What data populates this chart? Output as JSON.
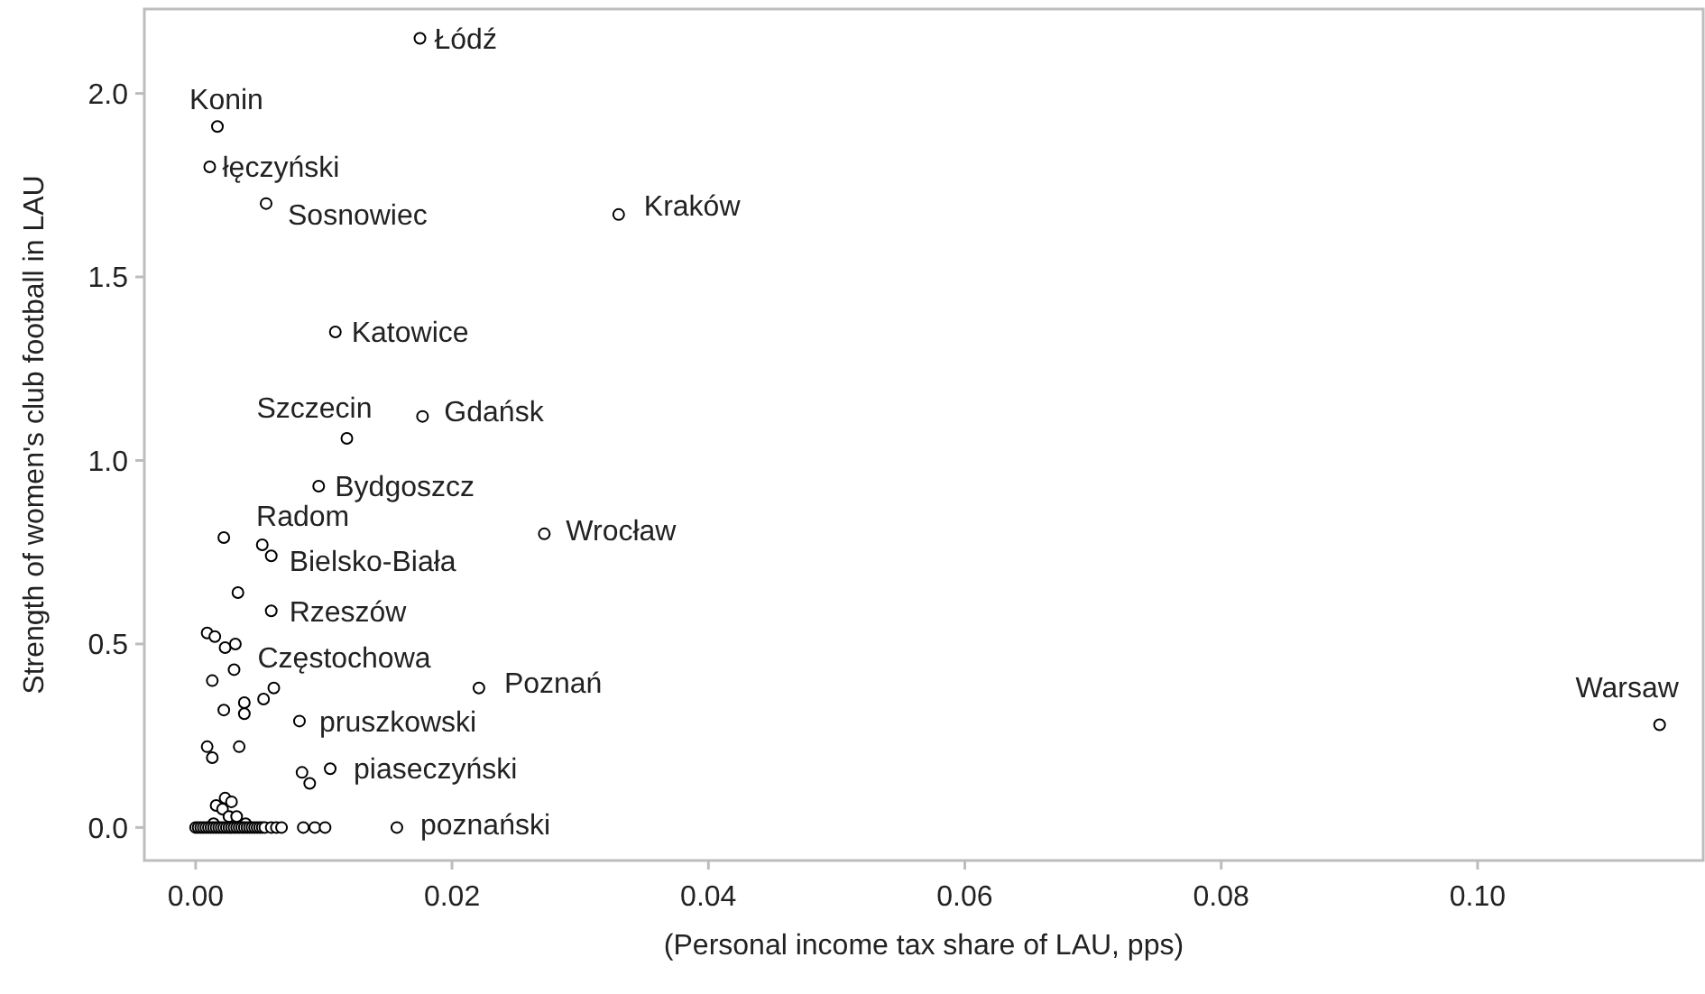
{
  "chart_data": {
    "type": "scatter",
    "xlabel": "(Personal income tax share of LAU, pps)",
    "ylabel": "Strength of women's club football in LAU",
    "xlim": [
      -0.004,
      0.1176
    ],
    "ylim": [
      -0.09,
      2.23
    ],
    "xticks": [
      {
        "value": 0,
        "label": "0.00"
      },
      {
        "value": 0.02,
        "label": "0.02"
      },
      {
        "value": 0.04,
        "label": "0.04"
      },
      {
        "value": 0.06,
        "label": "0.06"
      },
      {
        "value": 0.08,
        "label": "0.08"
      },
      {
        "value": 0.1,
        "label": "0.10"
      }
    ],
    "yticks": [
      {
        "value": 0,
        "label": "0.0"
      },
      {
        "value": 0.5,
        "label": "0.5"
      },
      {
        "value": 1,
        "label": "1.0"
      },
      {
        "value": 1.5,
        "label": "1.5"
      },
      {
        "value": 2,
        "label": "2.0"
      }
    ],
    "marker": "circle",
    "series": [
      {
        "color": "#000000",
        "x": [
          0.0175,
          0.0017,
          0.0011,
          0.0055,
          0.033,
          0.0109,
          0.0177,
          0.0118,
          0.0096,
          0.0022,
          0.0272,
          0.0059,
          0.0059,
          0.003,
          0.0221,
          0.0081,
          0.0105,
          0.0157,
          0.1142,
          0.0052,
          0.0033,
          0.0009,
          0.0015,
          0.0023,
          0.0031,
          0.0013,
          0.0022,
          0.0038,
          0.0038,
          0.0053,
          0.0061,
          0.0009,
          0.0013,
          0.0034,
          0.0083,
          0.0089,
          0.0084,
          0.0093,
          0.0101,
          0.0016,
          0.0023,
          0.0028,
          0.0021,
          0.0026,
          0.0032,
          0.0039,
          0.0014,
          0.0,
          0.0002,
          0.0004,
          0.0006,
          0.0008,
          0.001,
          0.0012,
          0.0014,
          0.0016,
          0.0018,
          0.002,
          0.0022,
          0.0024,
          0.0026,
          0.0028,
          0.003,
          0.0032,
          0.0034,
          0.0036,
          0.0038,
          0.004,
          0.0042,
          0.0044,
          0.0046,
          0.0048,
          0.005,
          0.0052,
          0.0054,
          0.0059,
          0.0063,
          0.0067
        ],
        "values": [
          2.15,
          1.91,
          1.8,
          1.7,
          1.67,
          1.35,
          1.12,
          1.06,
          0.93,
          0.79,
          0.8,
          0.74,
          0.59,
          0.43,
          0.38,
          0.29,
          0.16,
          0.0,
          0.28,
          0.77,
          0.64,
          0.53,
          0.52,
          0.49,
          0.5,
          0.4,
          0.32,
          0.34,
          0.31,
          0.35,
          0.38,
          0.22,
          0.19,
          0.22,
          0.15,
          0.12,
          0.0,
          0.0,
          0.0,
          0.06,
          0.08,
          0.07,
          0.05,
          0.03,
          0.03,
          0.01,
          0.01,
          0,
          0,
          0,
          0,
          0,
          0,
          0,
          0,
          0,
          0,
          0,
          0,
          0,
          0,
          0,
          0,
          0,
          0,
          0,
          0,
          0,
          0,
          0,
          0,
          0,
          0,
          0,
          0,
          0,
          0,
          0
        ]
      }
    ],
    "annotations": [
      {
        "text": "Łódź",
        "x": 0.0175,
        "y": 2.15
      },
      {
        "text": "Konin",
        "x": 0.0017,
        "y": 1.91
      },
      {
        "text": "łęczyński",
        "x": 0.0011,
        "y": 1.8
      },
      {
        "text": "Sosnowiec",
        "x": 0.0055,
        "y": 1.7
      },
      {
        "text": "Kraków",
        "x": 0.033,
        "y": 1.67
      },
      {
        "text": "Katowice",
        "x": 0.0109,
        "y": 1.35
      },
      {
        "text": "Gdańsk",
        "x": 0.0177,
        "y": 1.12
      },
      {
        "text": "Szczecin",
        "x": 0.0118,
        "y": 1.06
      },
      {
        "text": "Bydgoszcz",
        "x": 0.0096,
        "y": 0.93
      },
      {
        "text": "Radom",
        "x": 0.0022,
        "y": 0.79
      },
      {
        "text": "Wrocław",
        "x": 0.0272,
        "y": 0.8
      },
      {
        "text": "Bielsko-Biała",
        "x": 0.0059,
        "y": 0.74
      },
      {
        "text": "Rzeszów",
        "x": 0.0059,
        "y": 0.59
      },
      {
        "text": "Częstochowa",
        "x": 0.003,
        "y": 0.43
      },
      {
        "text": "Poznań",
        "x": 0.0221,
        "y": 0.38
      },
      {
        "text": "pruszkowski",
        "x": 0.0081,
        "y": 0.29
      },
      {
        "text": "piaseczyński",
        "x": 0.0105,
        "y": 0.16
      },
      {
        "text": "poznański",
        "x": 0.0157,
        "y": 0.0
      },
      {
        "text": "Warsaw",
        "x": 0.1142,
        "y": 0.28
      }
    ]
  }
}
